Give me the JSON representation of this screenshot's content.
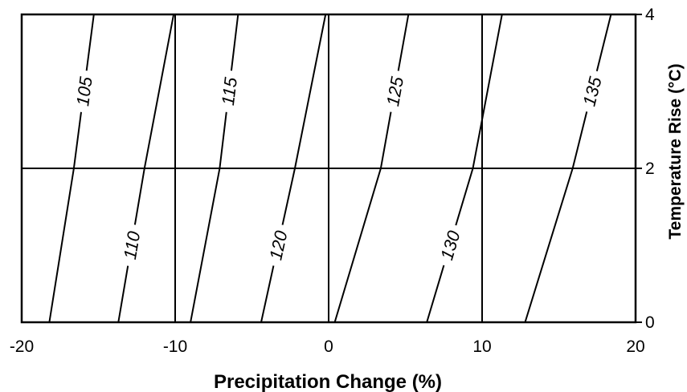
{
  "chart_data": {
    "type": "line",
    "title": "",
    "xlabel": "Precipitation Change (%)",
    "ylabel": "Temperature Rise (°C)",
    "xlim": [
      -20,
      20
    ],
    "ylim": [
      0,
      4
    ],
    "x_ticks": [
      "-20",
      "-10",
      "0",
      "10",
      "20"
    ],
    "y_ticks": [
      "0",
      "2",
      "4"
    ],
    "y_axis_side": "right",
    "grid": true,
    "series": [
      {
        "name": "105",
        "points": [
          [
            -18.2,
            0
          ],
          [
            -16.6,
            2
          ],
          [
            -15.3,
            4
          ]
        ],
        "label_at": [
          -15.9,
          3.0
        ]
      },
      {
        "name": "110",
        "points": [
          [
            -13.7,
            0
          ],
          [
            -12.0,
            2
          ],
          [
            -10.1,
            4
          ]
        ],
        "label_at": [
          -12.8,
          1.0
        ]
      },
      {
        "name": "115",
        "points": [
          [
            -9.0,
            0
          ],
          [
            -7.1,
            2
          ],
          [
            -5.9,
            4
          ]
        ],
        "label_at": [
          -6.1,
          3.0
        ]
      },
      {
        "name": "120",
        "points": [
          [
            -4.4,
            0
          ],
          [
            -2.2,
            2
          ],
          [
            -0.2,
            4
          ]
        ],
        "label_at": [
          -2.8,
          1.0
        ]
      },
      {
        "name": "125",
        "points": [
          [
            0.4,
            0
          ],
          [
            3.4,
            2
          ],
          [
            5.2,
            4
          ]
        ],
        "label_at": [
          4.4,
          3.0
        ]
      },
      {
        "name": "130",
        "points": [
          [
            6.4,
            0
          ],
          [
            9.4,
            2
          ],
          [
            11.3,
            4
          ]
        ],
        "label_at": [
          7.9,
          1.0
        ]
      },
      {
        "name": "135",
        "points": [
          [
            12.8,
            0
          ],
          [
            15.9,
            2
          ],
          [
            18.4,
            4
          ]
        ],
        "label_at": [
          16.9,
          3.0
        ]
      }
    ]
  }
}
